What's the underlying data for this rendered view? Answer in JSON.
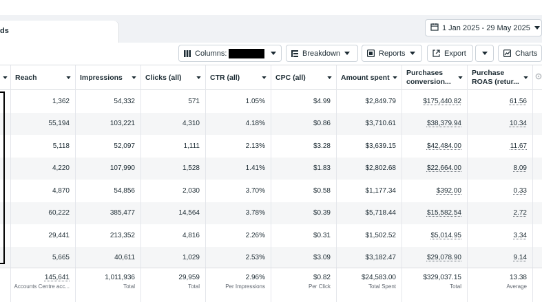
{
  "tab": {
    "label": "ds"
  },
  "date_range": {
    "label": "1 Jan 2025 - 29 May 2025"
  },
  "toolbar": {
    "columns_label": "Columns:",
    "breakdown_label": "Breakdown",
    "reports_label": "Reports",
    "export_label": "Export",
    "charts_label": "Charts"
  },
  "columns": [
    {
      "label": "Reach"
    },
    {
      "label": "Impressions"
    },
    {
      "label": "Clicks (all)"
    },
    {
      "label": "CTR (all)"
    },
    {
      "label": "CPC (all)"
    },
    {
      "label": "Amount spent"
    },
    {
      "label": "Purchases conversion..."
    },
    {
      "label": "Purchase ROAS (retur..."
    }
  ],
  "rows": [
    [
      "1,362",
      "54,332",
      "571",
      "1.05%",
      "$4.99",
      "$2,849.79",
      "$175,440.82",
      "61.56"
    ],
    [
      "55,194",
      "103,221",
      "4,310",
      "4.18%",
      "$0.86",
      "$3,710.61",
      "$38,379.94",
      "10.34"
    ],
    [
      "5,118",
      "52,097",
      "1,111",
      "2.13%",
      "$3.28",
      "$3,639.15",
      "$42,484.00",
      "11.67"
    ],
    [
      "4,220",
      "107,990",
      "1,528",
      "1.41%",
      "$1.83",
      "$2,802.68",
      "$22,664.00",
      "8.09"
    ],
    [
      "4,870",
      "54,856",
      "2,030",
      "3.70%",
      "$0.58",
      "$1,177.34",
      "$392.00",
      "0.33"
    ],
    [
      "60,222",
      "385,477",
      "14,564",
      "3.78%",
      "$0.39",
      "$5,718.44",
      "$15,582.54",
      "2.72"
    ],
    [
      "29,441",
      "213,352",
      "4,816",
      "2.26%",
      "$0.31",
      "$1,502.52",
      "$5,014.95",
      "3.34"
    ],
    [
      "5,665",
      "40,611",
      "1,029",
      "2.53%",
      "$3.09",
      "$3,182.47",
      "$29,078.90",
      "9.14"
    ]
  ],
  "totals": [
    {
      "value": "145,641",
      "sub": "Accounts Centre acc..."
    },
    {
      "value": "1,011,936",
      "sub": "Total"
    },
    {
      "value": "29,959",
      "sub": "Total"
    },
    {
      "value": "2.96%",
      "sub": "Per Impressions"
    },
    {
      "value": "$0.82",
      "sub": "Per Click"
    },
    {
      "value": "$24,583.00",
      "sub": "Total Spent"
    },
    {
      "value": "$329,037.15",
      "sub": "Total"
    },
    {
      "value": "13.38",
      "sub": "Average"
    }
  ],
  "colors": {
    "border": "#cbd2d9",
    "text": "#1c2b33",
    "muted": "#606770",
    "stripe": "#f5f6f7",
    "tabstrip": "#f0f2f5"
  },
  "icons": [
    "calendar-icon",
    "columns-icon",
    "breakdown-icon",
    "reports-icon",
    "export-icon",
    "charts-icon",
    "caret-down-icon",
    "settings-icon"
  ]
}
